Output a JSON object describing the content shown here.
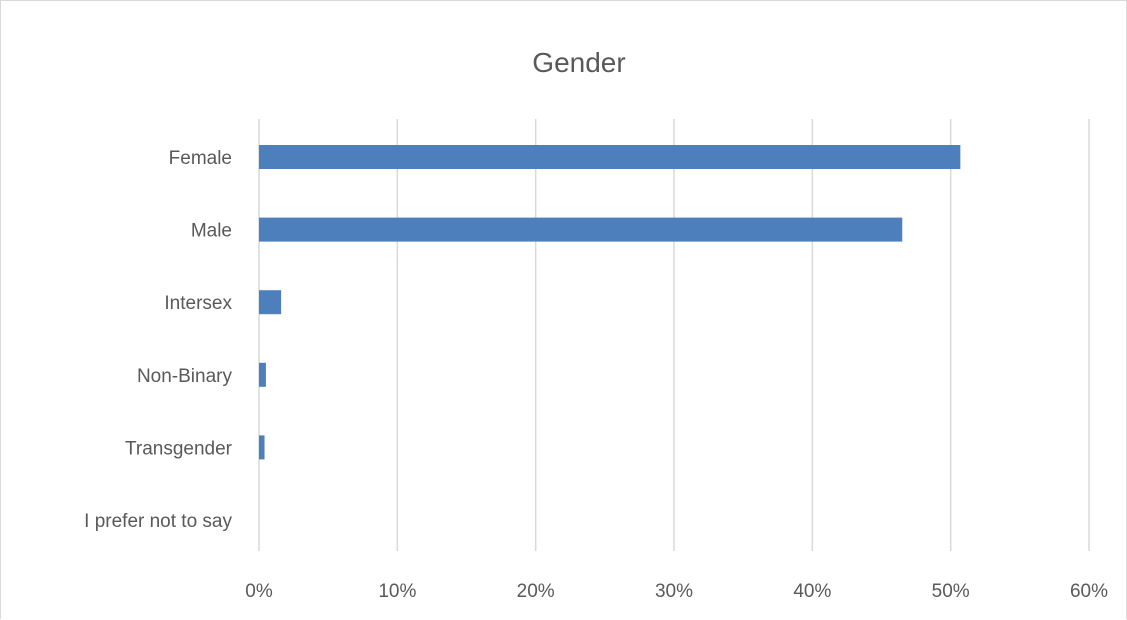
{
  "chart_data": {
    "type": "bar",
    "orientation": "horizontal",
    "title": "Gender",
    "categories": [
      "Female",
      "Male",
      "Intersex",
      "Non-Binary",
      "Transgender",
      "I prefer not to say"
    ],
    "values": [
      50.7,
      46.5,
      1.6,
      0.5,
      0.4,
      0.0
    ],
    "xlim": [
      0,
      60
    ],
    "xticks": [
      0,
      10,
      20,
      30,
      40,
      50,
      60
    ],
    "xtick_labels": [
      "0%",
      "10%",
      "20%",
      "30%",
      "40%",
      "50%",
      "60%"
    ],
    "xlabel": "",
    "ylabel": "",
    "grid": "vertical",
    "legend": "none",
    "bar_color": "#4e7fbd"
  }
}
